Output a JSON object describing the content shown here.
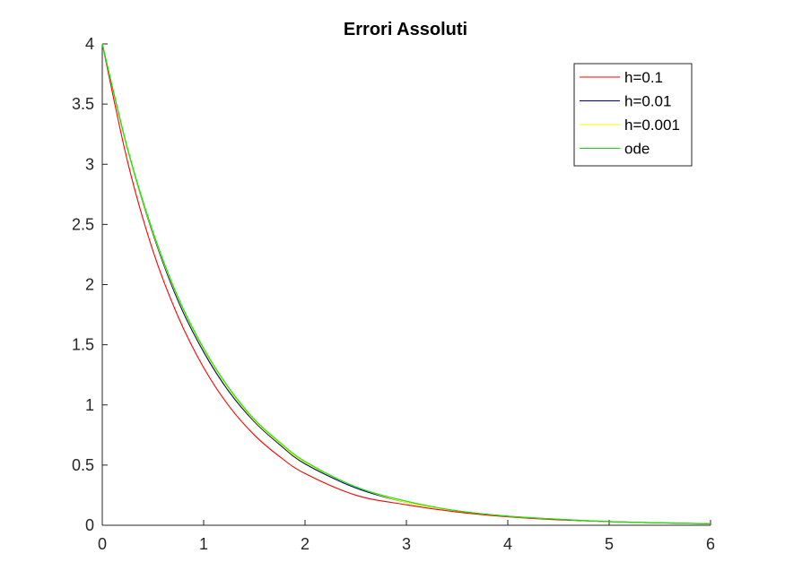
{
  "chart_data": {
    "type": "line",
    "title": "Errori Assoluti",
    "xlabel": "",
    "ylabel": "",
    "xlim": [
      0,
      6
    ],
    "ylim": [
      0,
      4
    ],
    "xticks": [
      0,
      1,
      2,
      3,
      4,
      5,
      6
    ],
    "yticks": [
      0,
      0.5,
      1,
      1.5,
      2,
      2.5,
      3,
      3.5,
      4
    ],
    "xtick_labels": [
      "0",
      "1",
      "2",
      "3",
      "4",
      "5",
      "6"
    ],
    "ytick_labels": [
      "0",
      "0.5",
      "1",
      "1.5",
      "2",
      "2.5",
      "3",
      "3.5",
      "4"
    ],
    "grid": false,
    "legend_position": "top-right",
    "x": [
      0,
      0.25,
      0.5,
      0.75,
      1,
      1.25,
      1.5,
      1.75,
      2,
      2.5,
      3,
      3.5,
      4,
      4.5,
      5,
      5.5,
      6
    ],
    "series": [
      {
        "name": "h=0.1",
        "color": "#ff0000",
        "values": [
          4.0,
          3.02,
          2.28,
          1.73,
          1.31,
          0.99,
          0.75,
          0.57,
          0.43,
          0.25,
          0.17,
          0.11,
          0.07,
          0.045,
          0.03,
          0.02,
          0.012
        ]
      },
      {
        "name": "h=0.01",
        "color": "#000080",
        "values": [
          4.0,
          3.12,
          2.42,
          1.86,
          1.44,
          1.11,
          0.86,
          0.67,
          0.51,
          0.31,
          0.19,
          0.12,
          0.075,
          0.05,
          0.03,
          0.02,
          0.013
        ]
      },
      {
        "name": "h=0.001",
        "color": "#ffff00",
        "values": [
          4.0,
          3.12,
          2.43,
          1.88,
          1.46,
          1.13,
          0.87,
          0.68,
          0.52,
          0.32,
          0.19,
          0.12,
          0.075,
          0.05,
          0.03,
          0.02,
          0.013
        ]
      },
      {
        "name": "ode",
        "color": "#00e600",
        "values": [
          4.0,
          3.13,
          2.44,
          1.89,
          1.47,
          1.14,
          0.88,
          0.69,
          0.53,
          0.32,
          0.2,
          0.12,
          0.076,
          0.05,
          0.03,
          0.02,
          0.013
        ]
      }
    ]
  }
}
